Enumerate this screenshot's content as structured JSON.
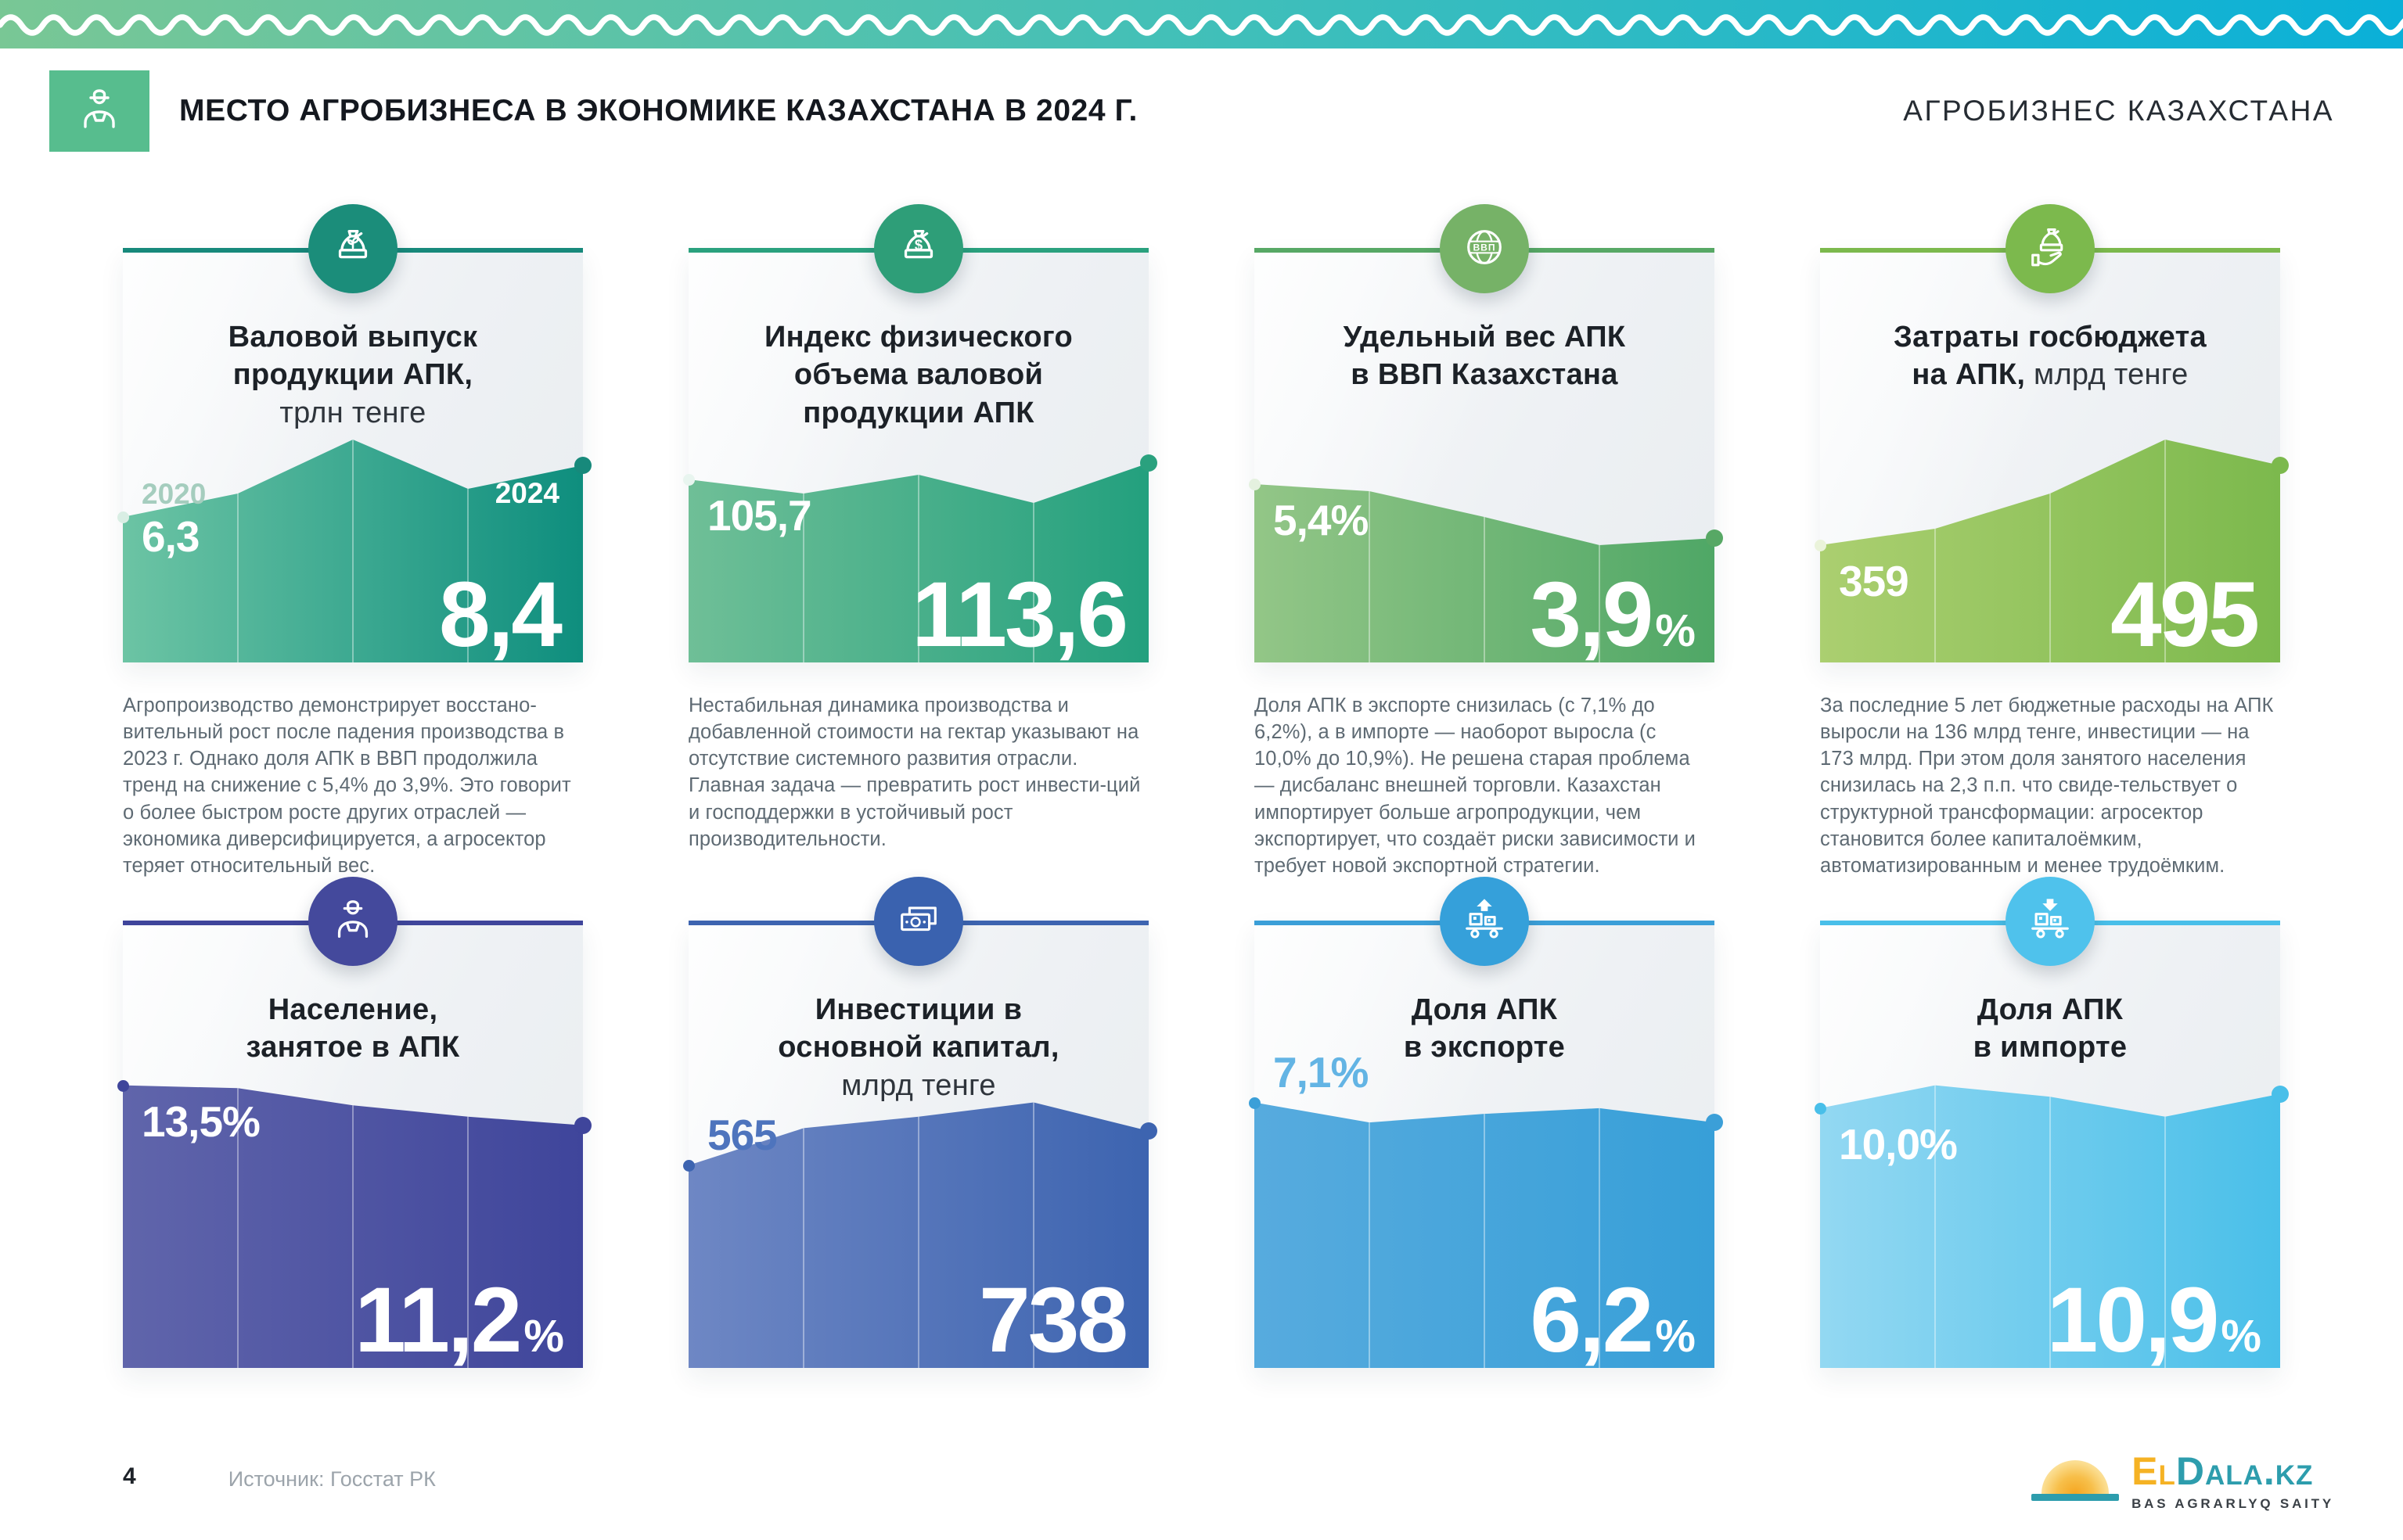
{
  "header": {
    "title": "МЕСТО АГРОБИЗНЕСА В ЭКОНОМИКЕ КАЗАХСТАНА В 2024 Г.",
    "brand": "АГРОБИЗНЕС КАЗАХСТАНА",
    "icon": "farmer-icon",
    "icon_bg": "#57BD8E",
    "band_gradient": [
      "#79C795",
      "#3FBFBA",
      "#0AB0D8"
    ]
  },
  "cards": [
    {
      "icon": "money-bag-sprout-icon",
      "icon_bg": "#1B8D7A",
      "title_lines": [
        [
          {
            "t": "Валовой выпуск",
            "b": true
          }
        ],
        [
          {
            "t": "продукции АПК,",
            "b": true
          }
        ],
        [
          {
            "t": "трлн тенге",
            "b": false
          }
        ]
      ],
      "desc": "Агропроизводство демонстрирует восстано-вительный рост после падения производства в 2023 г. Однако доля АПК в ВВП продолжила тренд на снижение с 5,4% до 3,9%. Это говорит о более быстром росте других отраслей — экономика диверсифицируется, а агросектор теряет относительный вес."
    },
    {
      "icon": "money-bag-dollar-icon",
      "icon_bg": "#2E9E78",
      "title_lines": [
        [
          {
            "t": "Индекс физического",
            "b": true
          }
        ],
        [
          {
            "t": "объема валовой",
            "b": true
          }
        ],
        [
          {
            "t": "продукции АПК",
            "b": true
          }
        ]
      ],
      "desc": "Нестабильная динамика производства и добавленной стоимости на гектар указывают на отсутствие системного развития отрасли. Главная задача — превратить рост инвести-ций и господдержки в устойчивый рост производительности."
    },
    {
      "icon": "globe-gdp-icon",
      "icon_bg": "#76B267",
      "title_lines": [
        [
          {
            "t": "Удельный вес АПК",
            "b": true
          }
        ],
        [
          {
            "t": "в ВВП Казахстана",
            "b": true
          }
        ]
      ],
      "desc": "Доля АПК в экспорте снизилась (с 7,1% до 6,2%), а в импорте — наоборот выросла (с 10,0% до 10,9%). Не решена старая проблема — дисбаланс внешней торговли. Казахстан импортирует больше агропродукции, чем экспортирует, что создаёт риски зависимости и требует новой экспортной стратегии."
    },
    {
      "icon": "hand-money-bag-icon",
      "icon_bg": "#7CB94D",
      "title_lines": [
        [
          {
            "t": "Затраты госбюджета",
            "b": true
          }
        ],
        [
          {
            "t": "на АПК, ",
            "b": true
          },
          {
            "t": "млрд тенге",
            "b": false
          }
        ]
      ],
      "desc": "За последние 5 лет бюджетные расходы на АПК выросли на 136 млрд тенге, инвестиции — на 173 млрд. При этом доля занятого населения снизилась на 2,3 п.п. что свиде-тельствует о структурной трансформации: агросектор становится более капиталоёмким, автоматизированным и менее трудоёмким."
    },
    {
      "icon": "farmer-icon",
      "icon_bg": "#44499C",
      "title_lines": [
        [
          {
            "t": "Население,",
            "b": true
          }
        ],
        [
          {
            "t": "занятое в АПК",
            "b": true
          }
        ]
      ]
    },
    {
      "icon": "banknotes-icon",
      "icon_bg": "#3A62AF",
      "title_lines": [
        [
          {
            "t": "Инвестиции в",
            "b": true
          }
        ],
        [
          {
            "t": "основной капитал,",
            "b": true
          }
        ],
        [
          {
            "t": "млрд тенге",
            "b": false
          }
        ]
      ]
    },
    {
      "icon": "cart-export-up-icon",
      "icon_bg": "#35A0DA",
      "title_lines": [
        [
          {
            "t": "Доля АПК",
            "b": true
          }
        ],
        [
          {
            "t": "в экспорте",
            "b": true
          }
        ]
      ]
    },
    {
      "icon": "cart-import-down-icon",
      "icon_bg": "#4FC2EC",
      "title_lines": [
        [
          {
            "t": "Доля АПК",
            "b": true
          }
        ],
        [
          {
            "t": "в импорте",
            "b": true
          }
        ]
      ]
    }
  ],
  "chart_data": [
    {
      "type": "area",
      "title": "Валовой выпуск продукции АПК, трлн тенге",
      "x_labels_shown": [
        "2020",
        "2024"
      ],
      "start_value": "6,3",
      "end_value": "8,4",
      "end_suffix": "",
      "profile_norm": [
        0.62,
        0.72,
        0.95,
        0.74,
        0.84
      ],
      "start_label_position": "on-fill",
      "colors": {
        "line": "#17897B",
        "fill_left": "#6CC4A4",
        "fill_right": "#0E8E7E",
        "start_text": "#FFFFFF",
        "start_dot": "#D9EEE4",
        "year_text": "#A5CDBE"
      }
    },
    {
      "type": "area",
      "title": "Индекс физического объема валовой продукции АПК",
      "start_value": "105,7",
      "end_value": "113,6",
      "end_suffix": "",
      "profile_norm": [
        0.78,
        0.72,
        0.8,
        0.68,
        0.85
      ],
      "start_label_position": "on-fill",
      "colors": {
        "line": "#2AA17E",
        "fill_left": "#6FBF97",
        "fill_right": "#23A07E",
        "start_text": "#FFFFFF",
        "start_dot": "#E8F5EF"
      }
    },
    {
      "type": "area",
      "title": "Удельный вес АПК в ВВП Казахстана",
      "start_value": "5,4%",
      "end_value": "3,9",
      "end_suffix": "%",
      "profile_norm": [
        0.76,
        0.73,
        0.62,
        0.5,
        0.53
      ],
      "start_label_position": "on-fill",
      "colors": {
        "line": "#57A865",
        "fill_left": "#93C687",
        "fill_right": "#4FA766",
        "start_text": "#FFFFFF",
        "start_dot": "#E4F1DF"
      }
    },
    {
      "type": "area",
      "title": "Затраты госбюджета на АПК, млрд тенге",
      "start_value": "359",
      "end_value": "495",
      "end_suffix": "",
      "profile_norm": [
        0.5,
        0.57,
        0.72,
        0.95,
        0.84
      ],
      "start_label_position": "on-fill",
      "colors": {
        "line": "#7CB94D",
        "fill_left": "#ABCF70",
        "fill_right": "#7CB94D",
        "start_text": "#FFFFFF",
        "start_dot": "#EAF3DA"
      }
    },
    {
      "type": "area",
      "title": "Население, занятое в АПК",
      "start_value": "13,5%",
      "end_value": "11,2",
      "end_suffix": "%",
      "profile_norm": [
        0.99,
        0.98,
        0.92,
        0.88,
        0.85
      ],
      "start_label_position": "on-fill",
      "colors": {
        "line": "#3F459B",
        "fill_left": "#6065AB",
        "fill_right": "#3F459B",
        "start_text": "#FFFFFF",
        "start_dot": "#3F459B"
      }
    },
    {
      "type": "area",
      "title": "Инвестиции в основной капитал, млрд тенге",
      "start_value": "565",
      "end_value": "738",
      "end_suffix": "",
      "profile_norm": [
        0.71,
        0.84,
        0.88,
        0.93,
        0.83
      ],
      "start_label_position": "above-fill",
      "colors": {
        "line": "#3D64B0",
        "fill_left": "#6E87C4",
        "fill_right": "#3D64B0",
        "start_text": "#4E74BD",
        "start_dot": "#3D64B0"
      }
    },
    {
      "type": "area",
      "title": "Доля АПК в экспорте",
      "start_value": "7,1%",
      "end_value": "6,2",
      "end_suffix": "%",
      "profile_norm": [
        0.93,
        0.86,
        0.89,
        0.91,
        0.86
      ],
      "start_label_position": "above-fill",
      "colors": {
        "line": "#3B9FD8",
        "fill_left": "#57ABDE",
        "fill_right": "#379FD8",
        "start_text": "#63B4E4",
        "start_dot": "#3B9FD8"
      }
    },
    {
      "type": "area",
      "title": "Доля АПК в импорте",
      "start_value": "10,0%",
      "end_value": "10,9",
      "end_suffix": "%",
      "profile_norm": [
        0.91,
        0.99,
        0.95,
        0.88,
        0.96
      ],
      "start_label_position": "on-fill",
      "colors": {
        "line": "#49BFE9",
        "fill_left": "#93D8F2",
        "fill_right": "#49BFE9",
        "start_text": "#FFFFFF",
        "start_dot": "#49BFE9"
      }
    }
  ],
  "footer": {
    "page": "4",
    "source": "Источник: Госстат РК",
    "logo": {
      "el": "El",
      "rest": "Dala.kz",
      "tagline": "BAS AGRARLYQ SAITY"
    }
  }
}
